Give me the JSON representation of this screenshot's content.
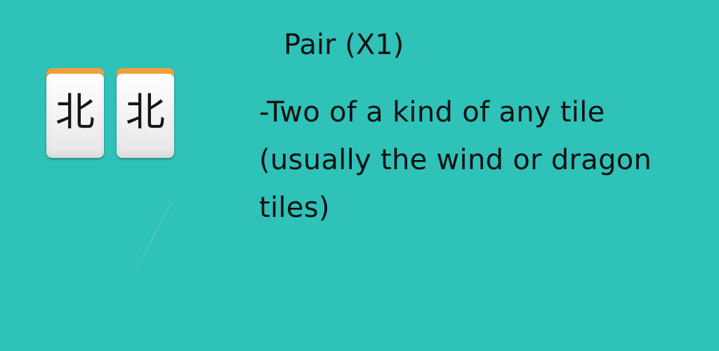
{
  "background_color": "#2fc2b8",
  "tiles": [
    {
      "glyph": "北",
      "icon": "north-wind-tile-icon"
    },
    {
      "glyph": "北",
      "icon": "north-wind-tile-icon"
    }
  ],
  "title": "Pair (X1)",
  "description_lines": [
    "-Two of a kind of any tile",
    "(usually the wind or dragon",
    "tiles)"
  ]
}
